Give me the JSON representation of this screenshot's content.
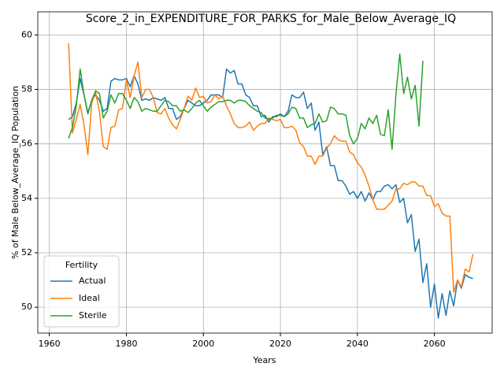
{
  "chart_data": {
    "type": "line",
    "title": "Score_2_in_EXPENDITURE_FOR_PARKS_for_Male_Below_Average_IQ",
    "x_label": "Years",
    "y_label": "% of Male Below_Average_IQ Population",
    "legend_title": "Fertility",
    "legend_position": "lower left",
    "grid": true,
    "xlim": [
      1957,
      2075
    ],
    "ylim": [
      49.05,
      60.85
    ],
    "xticks": [
      1960,
      1980,
      2000,
      2020,
      2040,
      2060
    ],
    "yticks": [
      50,
      52,
      54,
      56,
      58,
      60
    ],
    "x": [
      1965,
      1966,
      1967,
      1968,
      1969,
      1970,
      1971,
      1972,
      1973,
      1974,
      1975,
      1976,
      1977,
      1978,
      1979,
      1980,
      1981,
      1982,
      1983,
      1984,
      1985,
      1986,
      1987,
      1988,
      1989,
      1990,
      1991,
      1992,
      1993,
      1994,
      1995,
      1996,
      1997,
      1998,
      1999,
      2000,
      2001,
      2002,
      2003,
      2004,
      2005,
      2006,
      2007,
      2008,
      2009,
      2010,
      2011,
      2012,
      2013,
      2014,
      2015,
      2016,
      2017,
      2018,
      2019,
      2020,
      2021,
      2022,
      2023,
      2024,
      2025,
      2026,
      2027,
      2028,
      2029,
      2030,
      2031,
      2032,
      2033,
      2034,
      2035,
      2036,
      2037,
      2038,
      2039,
      2040,
      2041,
      2042,
      2043,
      2044,
      2045,
      2046,
      2047,
      2048,
      2049,
      2050,
      2051,
      2052,
      2053,
      2054,
      2055,
      2056,
      2057,
      2058,
      2059,
      2060,
      2061,
      2062,
      2063,
      2064,
      2065,
      2066,
      2067,
      2068,
      2069,
      2070
    ],
    "series": [
      {
        "name": "Actual",
        "color": "#1f77b4",
        "values": [
          56.9,
          57.0,
          57.5,
          58.4,
          57.8,
          57.1,
          57.6,
          57.8,
          57.6,
          57.2,
          57.3,
          58.3,
          58.4,
          58.35,
          58.35,
          58.4,
          58.1,
          58.5,
          58.2,
          57.6,
          57.65,
          57.6,
          57.7,
          57.65,
          57.6,
          57.7,
          57.3,
          57.3,
          56.9,
          57.0,
          57.3,
          57.6,
          57.5,
          57.4,
          57.4,
          57.5,
          57.6,
          57.8,
          57.8,
          57.8,
          57.7,
          58.75,
          58.6,
          58.7,
          58.2,
          58.2,
          57.8,
          57.7,
          57.4,
          57.4,
          57.0,
          57.05,
          56.8,
          57.0,
          57.0,
          57.1,
          57.0,
          57.2,
          57.8,
          57.7,
          57.7,
          57.9,
          57.3,
          57.5,
          56.5,
          56.8,
          55.6,
          55.9,
          55.2,
          55.2,
          54.65,
          54.65,
          54.45,
          54.15,
          54.25,
          54.0,
          54.25,
          53.9,
          54.2,
          53.95,
          54.25,
          54.25,
          54.45,
          54.5,
          54.35,
          54.5,
          53.85,
          54.0,
          53.1,
          53.4,
          52.05,
          52.5,
          50.9,
          51.6,
          50.0,
          50.85,
          49.6,
          50.5,
          49.7,
          50.6,
          50.05,
          51.0,
          50.7,
          51.2,
          51.1,
          51.05
        ]
      },
      {
        "name": "Ideal",
        "color": "#ff7f0e",
        "values": [
          59.7,
          56.4,
          56.9,
          57.45,
          56.7,
          55.6,
          57.5,
          57.9,
          57.2,
          55.9,
          55.8,
          56.6,
          56.65,
          57.25,
          57.3,
          58.35,
          57.7,
          58.5,
          59.0,
          57.7,
          58.0,
          58.0,
          57.7,
          57.15,
          57.1,
          57.3,
          56.95,
          56.7,
          56.55,
          56.9,
          57.3,
          57.75,
          57.6,
          58.05,
          57.7,
          57.75,
          57.5,
          57.55,
          57.8,
          57.65,
          57.75,
          57.4,
          57.1,
          56.75,
          56.6,
          56.6,
          56.65,
          56.8,
          56.5,
          56.65,
          56.75,
          56.75,
          56.95,
          56.9,
          56.85,
          56.9,
          56.6,
          56.6,
          56.65,
          56.5,
          56.05,
          55.9,
          55.55,
          55.55,
          55.25,
          55.55,
          55.55,
          55.85,
          56.0,
          56.3,
          56.15,
          56.1,
          56.1,
          55.7,
          55.6,
          55.3,
          55.15,
          54.85,
          54.45,
          53.95,
          53.6,
          53.6,
          53.6,
          53.75,
          53.9,
          54.35,
          54.35,
          54.55,
          54.5,
          54.6,
          54.6,
          54.45,
          54.45,
          54.1,
          54.1,
          53.7,
          53.8,
          53.45,
          53.35,
          53.35,
          50.55,
          51.0,
          50.75,
          51.4,
          51.3,
          51.95
        ]
      },
      {
        "name": "Sterile",
        "color": "#2ca02c",
        "values": [
          56.2,
          56.6,
          57.4,
          58.75,
          57.8,
          57.15,
          57.6,
          57.95,
          57.85,
          56.95,
          57.2,
          57.8,
          57.5,
          57.85,
          57.85,
          57.6,
          57.3,
          57.7,
          57.55,
          57.2,
          57.3,
          57.25,
          57.2,
          57.2,
          57.4,
          57.6,
          57.55,
          57.4,
          57.4,
          57.2,
          57.25,
          57.15,
          57.3,
          57.5,
          57.6,
          57.4,
          57.2,
          57.35,
          57.45,
          57.55,
          57.55,
          57.6,
          57.6,
          57.5,
          57.6,
          57.6,
          57.55,
          57.4,
          57.3,
          57.2,
          57.15,
          56.95,
          56.9,
          56.95,
          57.05,
          57.05,
          57.0,
          57.1,
          57.35,
          57.3,
          56.95,
          56.95,
          56.6,
          56.7,
          56.75,
          57.1,
          56.8,
          56.85,
          57.35,
          57.3,
          57.1,
          57.1,
          57.05,
          56.3,
          56.0,
          56.2,
          56.75,
          56.55,
          56.95,
          56.75,
          57.05,
          56.35,
          56.3,
          57.25,
          55.8,
          57.8,
          59.3,
          57.85,
          58.45,
          57.65,
          58.15,
          56.65,
          59.05,
          null,
          null,
          null,
          null,
          null,
          null,
          null,
          null,
          null,
          null,
          null,
          null,
          null
        ]
      }
    ]
  }
}
